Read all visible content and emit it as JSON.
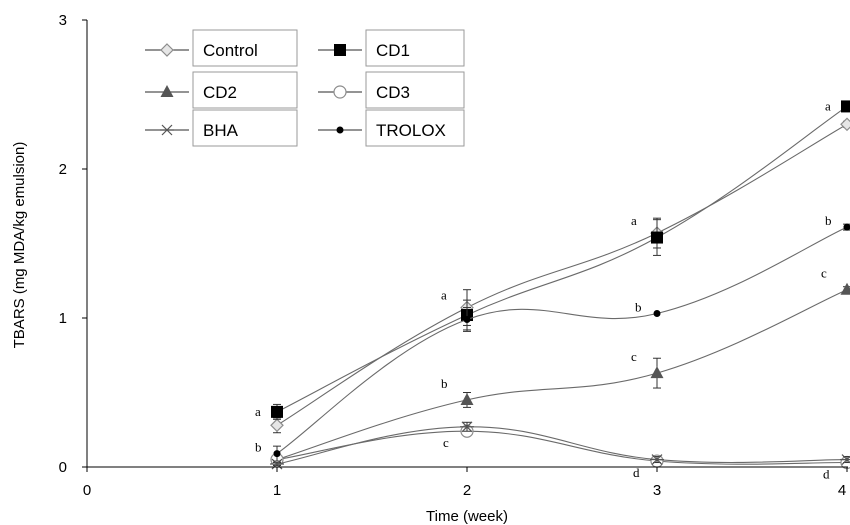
{
  "chart_data": {
    "type": "line",
    "title": "",
    "xlabel": "Time (week)",
    "ylabel": "TBARS (mg MDA/kg emulsion)",
    "xlim": [
      0,
      4
    ],
    "ylim": [
      0,
      3
    ],
    "x_ticks": [
      "0",
      "1",
      "2",
      "3",
      "4"
    ],
    "y_ticks": [
      "0",
      "1",
      "2",
      "3"
    ],
    "grid": false,
    "legend_position": "top-left",
    "series": [
      {
        "name": "Control",
        "marker": "diamond-open",
        "color": "#8c8c8c",
        "x": [
          1,
          2,
          3,
          4
        ],
        "y": [
          0.28,
          1.07,
          1.57,
          2.3
        ],
        "err": [
          0.05,
          0.12,
          0.1,
          0.02
        ],
        "labels": [
          "",
          "a",
          "a",
          ""
        ]
      },
      {
        "name": "CD1",
        "marker": "square-filled",
        "color": "#000000",
        "x": [
          1,
          2,
          3,
          4
        ],
        "y": [
          0.37,
          1.02,
          1.54,
          2.42
        ],
        "err": [
          0.05,
          0.1,
          0.12,
          0.02
        ],
        "labels": [
          "a",
          "",
          "",
          "a"
        ]
      },
      {
        "name": "CD2",
        "marker": "triangle-filled",
        "color": "#555555",
        "x": [
          1,
          2,
          3,
          4
        ],
        "y": [
          0.05,
          0.45,
          0.63,
          1.19
        ],
        "err": [
          0.02,
          0.05,
          0.1,
          0.02
        ],
        "labels": [
          "",
          "b",
          "c",
          "c"
        ]
      },
      {
        "name": "CD3",
        "marker": "circle-open",
        "color": "#8c8c8c",
        "x": [
          1,
          2,
          3,
          4
        ],
        "y": [
          0.05,
          0.24,
          0.04,
          0.03
        ],
        "err": [
          0.02,
          0.03,
          0.02,
          0.02
        ],
        "labels": [
          "",
          "c",
          "d",
          "d"
        ]
      },
      {
        "name": "BHA",
        "marker": "star",
        "color": "#555555",
        "x": [
          1,
          2,
          3,
          4
        ],
        "y": [
          0.02,
          0.27,
          0.05,
          0.05
        ],
        "err": [
          0.01,
          0.03,
          0.02,
          0.02
        ],
        "labels": [
          "",
          "",
          "",
          ""
        ]
      },
      {
        "name": "TROLOX",
        "marker": "circle-filled",
        "color": "#000000",
        "x": [
          1,
          2,
          3,
          4
        ],
        "y": [
          0.09,
          0.99,
          1.03,
          1.61
        ],
        "err": [
          0.05,
          0.08,
          0.0,
          0.02
        ],
        "labels": [
          "b",
          "",
          "b",
          "b"
        ]
      }
    ]
  }
}
